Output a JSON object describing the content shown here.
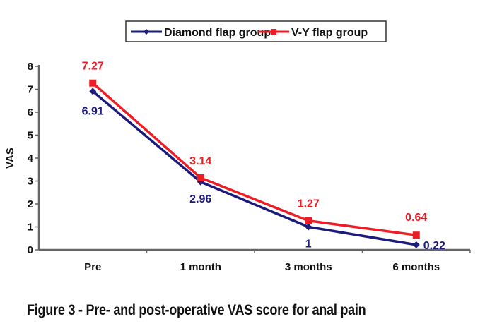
{
  "chart_data": {
    "type": "line",
    "title": "",
    "xlabel": "",
    "ylabel": "VAS",
    "ylim": [
      0,
      8
    ],
    "yticks": [
      0,
      1,
      2,
      3,
      4,
      5,
      6,
      7,
      8
    ],
    "categories": [
      "Pre",
      "1 month",
      "3 months",
      "6 months"
    ],
    "grid": false,
    "legend_position": "top-center",
    "series": [
      {
        "name": "Diamond flap group",
        "color": "#1c1a7a",
        "marker": "diamond",
        "values": [
          6.91,
          2.96,
          1,
          0.22
        ],
        "labels": [
          "6.91",
          "2.96",
          "1",
          "0.22"
        ]
      },
      {
        "name": "V-Y flap group",
        "color": "#ee1c24",
        "marker": "square",
        "values": [
          7.27,
          3.14,
          1.27,
          0.64
        ],
        "labels": [
          "7.27",
          "3.14",
          "1.27",
          "0.64"
        ]
      }
    ]
  },
  "caption": "Figure 3 - Pre- and post-operative VAS score for anal pain"
}
